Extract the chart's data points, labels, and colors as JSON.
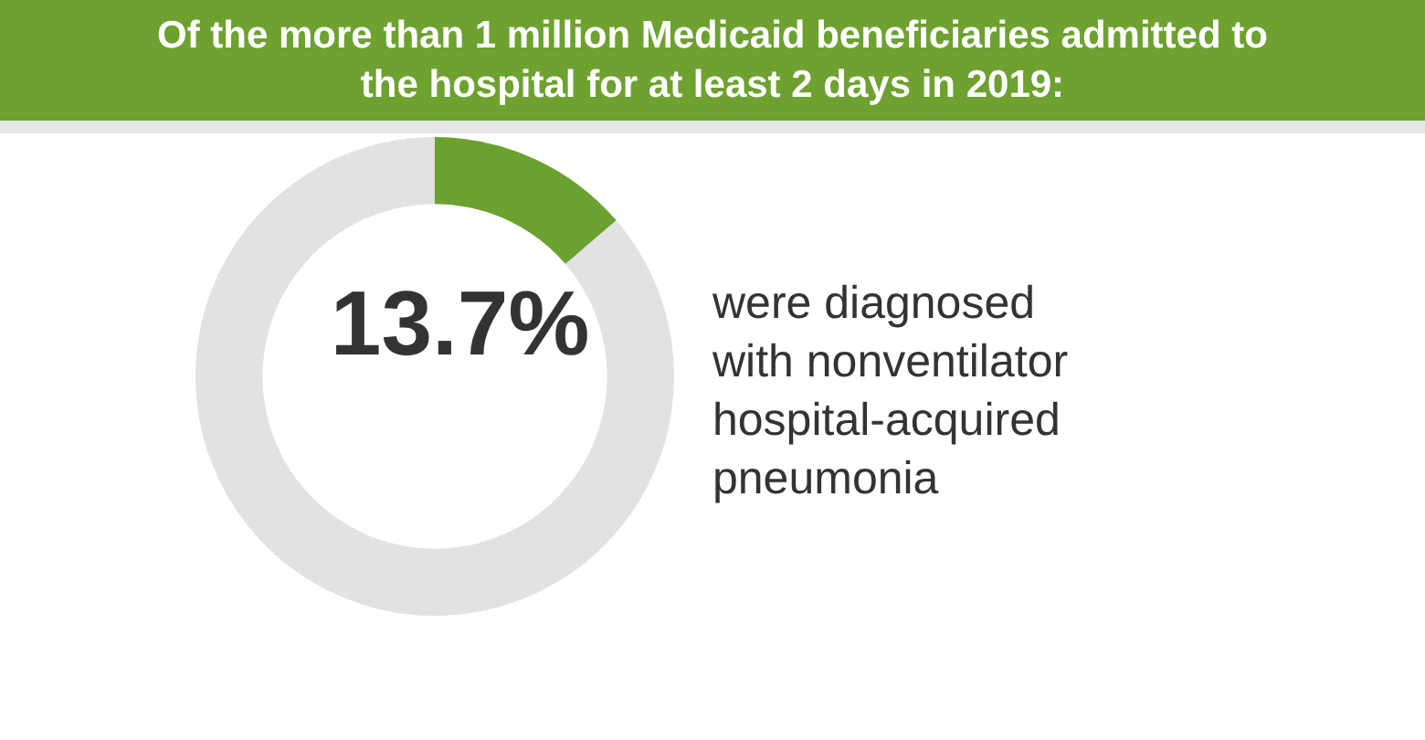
{
  "chart_data": {
    "type": "donut",
    "title": "Of the more than 1 million Medicaid beneficiaries admitted to the hospital for at least 2 days in 2019:",
    "categories": [
      null,
      null
    ],
    "values": [
      13.7,
      86.3
    ],
    "colors": [
      "#6ba12f",
      "#e2e2e2"
    ],
    "value_labels": [
      "13.7%",
      null
    ],
    "annotations": [
      "were diagnosed with nonventilator hospital-acquired pneumonia"
    ],
    "legend": false
  }
}
